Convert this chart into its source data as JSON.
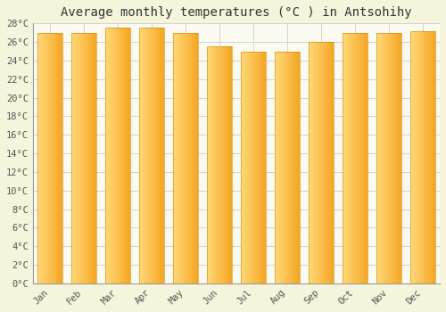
{
  "title": "Average monthly temperatures (°C ) in Antsohihy",
  "months": [
    "Jan",
    "Feb",
    "Mar",
    "Apr",
    "May",
    "Jun",
    "Jul",
    "Aug",
    "Sep",
    "Oct",
    "Nov",
    "Dec"
  ],
  "temperatures": [
    27.0,
    27.0,
    27.5,
    27.5,
    27.0,
    25.5,
    25.0,
    25.0,
    26.0,
    27.0,
    27.0,
    27.2
  ],
  "ylim": [
    0,
    28
  ],
  "yticks": [
    0,
    2,
    4,
    6,
    8,
    10,
    12,
    14,
    16,
    18,
    20,
    22,
    24,
    26,
    28
  ],
  "bar_color_main": "#F5A623",
  "bar_color_light": "#FFD97A",
  "background_color": "#F5F5DC",
  "plot_background": "#FAFAF0",
  "grid_color": "#CCCCCC",
  "title_fontsize": 10,
  "tick_fontsize": 7.5,
  "font_family": "monospace"
}
